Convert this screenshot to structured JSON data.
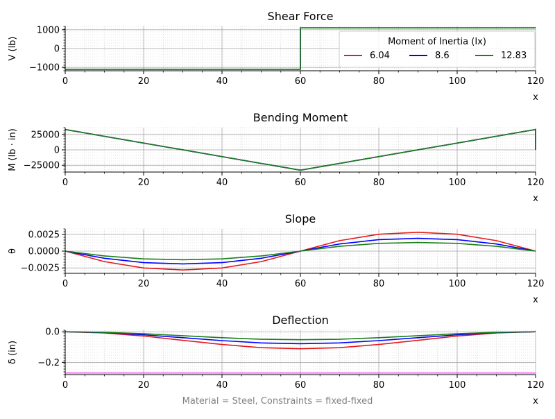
{
  "footer": "Material = Steel, Constraints = fixed-fixed",
  "legend": {
    "title": "Moment of Inertia (Ix)",
    "placement": "upper-right of first panel"
  },
  "colors": {
    "6.04": "#e41a1c",
    "8.6": "#0000ff",
    "12.83": "#1a7f1a",
    "limit": "#ff00ff"
  },
  "chart_data": [
    {
      "type": "line",
      "title": "Shear Force",
      "xlabel": "x",
      "ylabel": "V  (lb)",
      "xlim": [
        0,
        120
      ],
      "ylim": [
        -1180,
        1180
      ],
      "xticks": [
        "0",
        "20",
        "40",
        "60",
        "80",
        "100",
        "120"
      ],
      "yticks": [
        {
          "value": 1000,
          "label": "1000"
        },
        {
          "value": 0,
          "label": "0"
        },
        {
          "value": -1000,
          "label": "−1000"
        }
      ],
      "grid": true,
      "series": [
        {
          "name": "6.04",
          "color": "#e41a1c",
          "x": [
            0,
            60,
            60,
            120
          ],
          "y": [
            -1100,
            -1100,
            1100,
            1100
          ]
        },
        {
          "name": "8.6",
          "color": "#0000ff",
          "x": [
            0,
            60,
            60,
            120
          ],
          "y": [
            -1100,
            -1100,
            1100,
            1100
          ]
        },
        {
          "name": "12.83",
          "color": "#1a7f1a",
          "x": [
            0,
            60,
            60,
            120
          ],
          "y": [
            -1100,
            -1100,
            1100,
            1100
          ]
        }
      ]
    },
    {
      "type": "line",
      "title": "Bending Moment",
      "xlabel": "x",
      "ylabel": "M  (lb · in)",
      "xlim": [
        0,
        120
      ],
      "ylim": [
        -36000,
        36000
      ],
      "xticks": [
        "0",
        "20",
        "40",
        "60",
        "80",
        "100",
        "120"
      ],
      "yticks": [
        {
          "value": 25000,
          "label": "25000"
        },
        {
          "value": 0,
          "label": "0"
        },
        {
          "value": -25000,
          "label": "−25000"
        }
      ],
      "grid": true,
      "series": [
        {
          "name": "6.04",
          "color": "#e41a1c",
          "x": [
            0,
            60,
            120,
            120
          ],
          "y": [
            33000,
            -33000,
            33000,
            0
          ]
        },
        {
          "name": "8.6",
          "color": "#0000ff",
          "x": [
            0,
            60,
            120,
            120
          ],
          "y": [
            33000,
            -33000,
            33000,
            0
          ]
        },
        {
          "name": "12.83",
          "color": "#1a7f1a",
          "x": [
            0,
            60,
            120,
            120
          ],
          "y": [
            33000,
            -33000,
            33000,
            0
          ]
        }
      ]
    },
    {
      "type": "line",
      "title": "Slope",
      "xlabel": "x",
      "ylabel": "θ",
      "xlim": [
        0,
        120
      ],
      "ylim": [
        -0.0033,
        0.0033
      ],
      "xticks": [
        "0",
        "20",
        "40",
        "60",
        "80",
        "100",
        "120"
      ],
      "yticks": [
        {
          "value": 0.0025,
          "label": "0.0025"
        },
        {
          "value": 0,
          "label": "0.0000"
        },
        {
          "value": -0.0025,
          "label": "−0.0025"
        }
      ],
      "grid": true,
      "series": [
        {
          "name": "6.04",
          "color": "#e41a1c",
          "x": [
            0,
            10,
            20,
            30,
            40,
            50,
            60,
            70,
            80,
            90,
            100,
            110,
            120
          ],
          "y": [
            0,
            -0.00156,
            -0.00251,
            -0.0028,
            -0.00251,
            -0.00156,
            0,
            0.00156,
            0.00251,
            0.0028,
            0.00251,
            0.00156,
            0
          ]
        },
        {
          "name": "8.6",
          "color": "#0000ff",
          "x": [
            0,
            10,
            20,
            30,
            40,
            50,
            60,
            70,
            80,
            90,
            100,
            110,
            120
          ],
          "y": [
            0,
            -0.00106,
            -0.00171,
            -0.0019,
            -0.00171,
            -0.00106,
            0,
            0.00106,
            0.00171,
            0.0019,
            0.00171,
            0.00106,
            0
          ]
        },
        {
          "name": "12.83",
          "color": "#1a7f1a",
          "x": [
            0,
            10,
            20,
            30,
            40,
            50,
            60,
            70,
            80,
            90,
            100,
            110,
            120
          ],
          "y": [
            0,
            -0.00072,
            -0.00115,
            -0.00128,
            -0.00115,
            -0.00072,
            0,
            0.00072,
            0.00115,
            0.00128,
            0.00115,
            0.00072,
            0
          ]
        }
      ]
    },
    {
      "type": "line",
      "title": "Deflection",
      "xlabel": "x",
      "ylabel": "δ  (in)",
      "xlim": [
        0,
        120
      ],
      "ylim": [
        -0.28,
        0.01
      ],
      "xticks": [
        "0",
        "20",
        "40",
        "60",
        "80",
        "100",
        "120"
      ],
      "yticks": [
        {
          "value": 0,
          "label": "0.0"
        },
        {
          "value": -0.2,
          "label": "−0.2"
        }
      ],
      "grid": true,
      "hline": {
        "value": -0.27,
        "color": "#ff00ff"
      },
      "series": [
        {
          "name": "6.04",
          "color": "#e41a1c",
          "x": [
            0,
            10,
            20,
            30,
            40,
            50,
            60,
            70,
            80,
            90,
            100,
            110,
            120
          ],
          "y": [
            0,
            -0.008,
            -0.028,
            -0.056,
            -0.083,
            -0.104,
            -0.111,
            -0.104,
            -0.083,
            -0.056,
            -0.028,
            -0.008,
            0
          ]
        },
        {
          "name": "8.6",
          "color": "#0000ff",
          "x": [
            0,
            10,
            20,
            30,
            40,
            50,
            60,
            70,
            80,
            90,
            100,
            110,
            120
          ],
          "y": [
            0,
            -0.0055,
            -0.02,
            -0.039,
            -0.058,
            -0.073,
            -0.078,
            -0.073,
            -0.058,
            -0.039,
            -0.02,
            -0.0055,
            0
          ]
        },
        {
          "name": "12.83",
          "color": "#1a7f1a",
          "x": [
            0,
            10,
            20,
            30,
            40,
            50,
            60,
            70,
            80,
            90,
            100,
            110,
            120
          ],
          "y": [
            0,
            -0.0037,
            -0.013,
            -0.026,
            -0.039,
            -0.049,
            -0.052,
            -0.049,
            -0.039,
            -0.026,
            -0.013,
            -0.0037,
            0
          ]
        }
      ]
    }
  ]
}
